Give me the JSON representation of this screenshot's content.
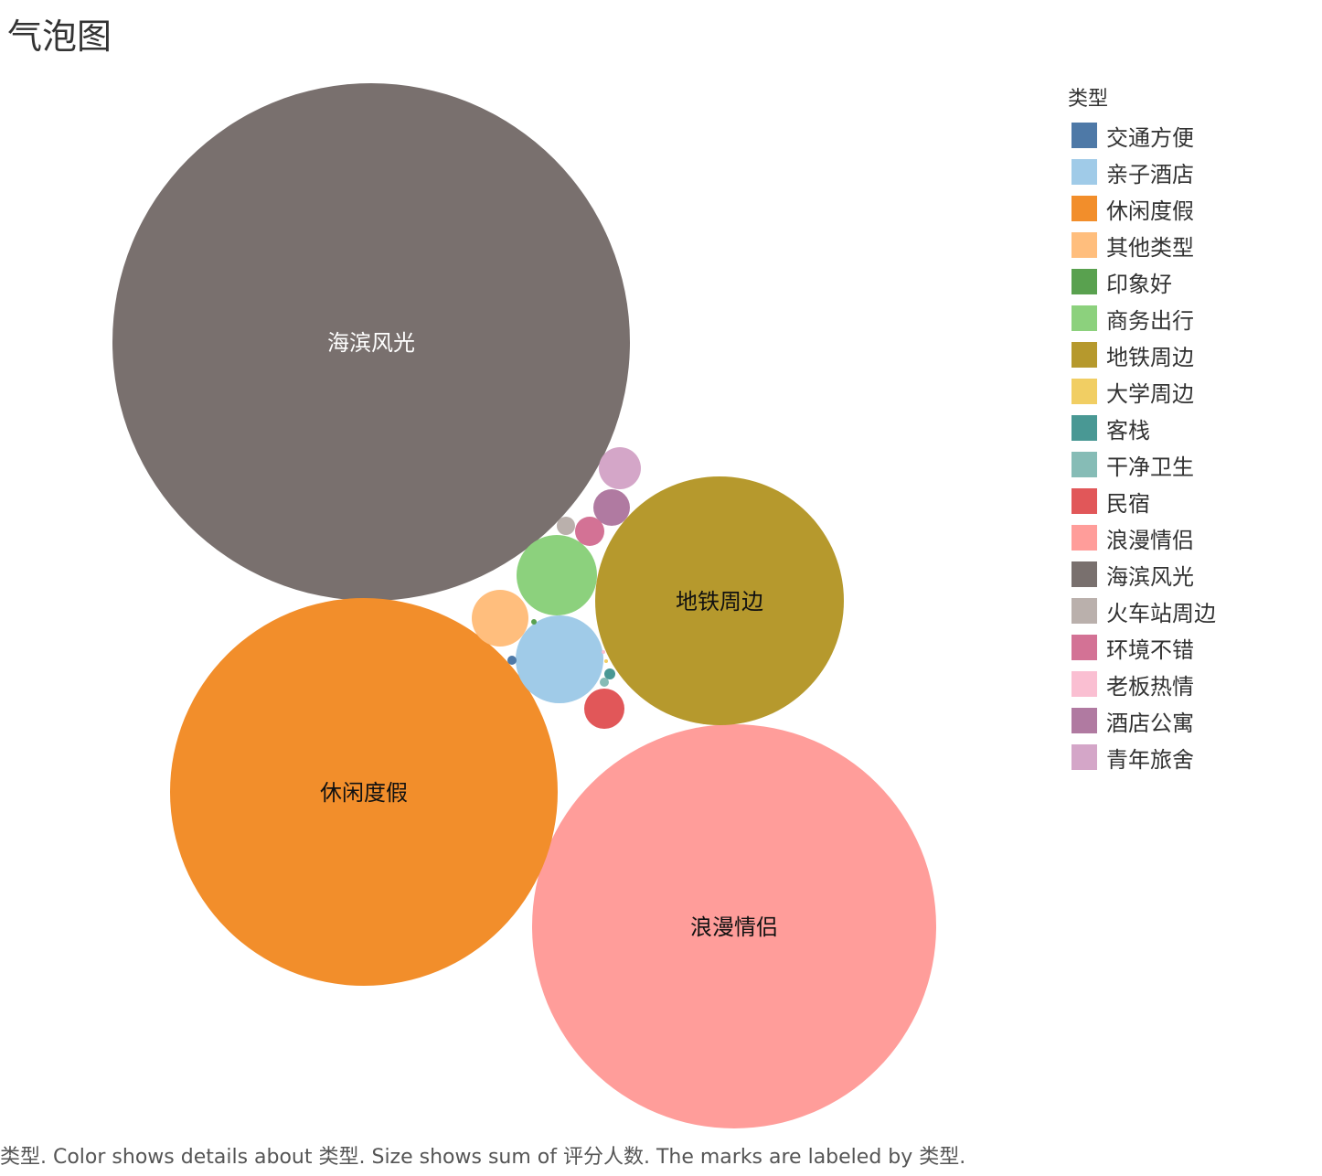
{
  "title": "气泡图",
  "legend": {
    "title": "类型"
  },
  "caption": "类型.  Color shows details about 类型.  Size shows sum of 评分人数.  The marks are labeled by 类型.",
  "chart_data": {
    "type": "bubble",
    "title": "气泡图",
    "color_field": "类型",
    "size_field": "评分人数",
    "label_field": "类型",
    "legend_position": "right",
    "series": [
      {
        "name": "交通方便",
        "color": "#4e79a7",
        "relative_size": 0.0003,
        "labeled": false
      },
      {
        "name": "亲子酒店",
        "color": "#a0cbe8",
        "relative_size": 0.029,
        "labeled": false
      },
      {
        "name": "休闲度假",
        "color": "#f28e2b",
        "relative_size": 0.56,
        "labeled": true
      },
      {
        "name": "其他类型",
        "color": "#ffbe7d",
        "relative_size": 0.012,
        "labeled": false
      },
      {
        "name": "印象好",
        "color": "#59a14f",
        "relative_size": 0.0001,
        "labeled": false
      },
      {
        "name": "商务出行",
        "color": "#8cd17d",
        "relative_size": 0.024,
        "labeled": false
      },
      {
        "name": "地铁周边",
        "color": "#b6992d",
        "relative_size": 0.23,
        "labeled": true
      },
      {
        "name": "大学周边",
        "color": "#f1ce63",
        "relative_size": 0.0001,
        "labeled": false
      },
      {
        "name": "客栈",
        "color": "#499894",
        "relative_size": 0.0005,
        "labeled": false
      },
      {
        "name": "干净卫生",
        "color": "#86bcb6",
        "relative_size": 0.0003,
        "labeled": false
      },
      {
        "name": "民宿",
        "color": "#e15759",
        "relative_size": 0.006,
        "labeled": false
      },
      {
        "name": "浪漫情侣",
        "color": "#ff9d9a",
        "relative_size": 0.61,
        "labeled": true
      },
      {
        "name": "海滨风光",
        "color": "#79706e",
        "relative_size": 1.0,
        "labeled": true
      },
      {
        "name": "火车站周边",
        "color": "#bab0ac",
        "relative_size": 0.0013,
        "labeled": false
      },
      {
        "name": "环境不错",
        "color": "#d37295",
        "relative_size": 0.0031,
        "labeled": false
      },
      {
        "name": "老板热情",
        "color": "#fabfd2",
        "relative_size": 0.0001,
        "labeled": false
      },
      {
        "name": "酒店公寓",
        "color": "#b07aa1",
        "relative_size": 0.005,
        "labeled": false
      },
      {
        "name": "青年旅舍",
        "color": "#d4a6c8",
        "relative_size": 0.0065,
        "labeled": false
      }
    ]
  }
}
